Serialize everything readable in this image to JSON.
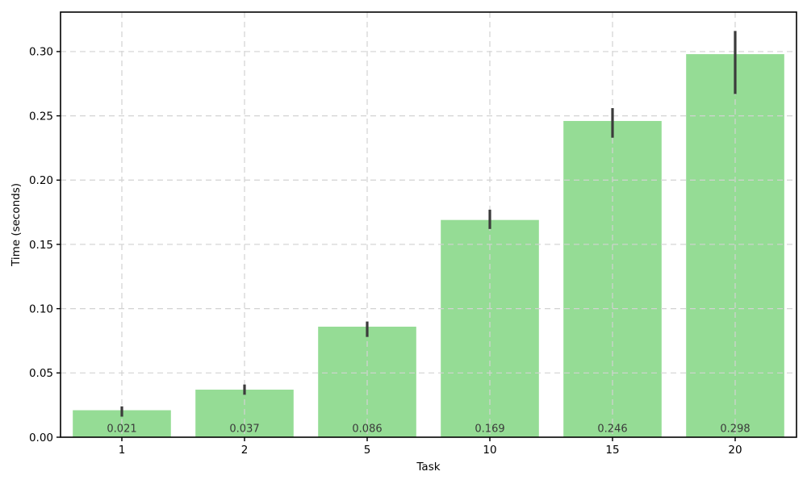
{
  "chart_data": {
    "type": "bar",
    "title": "",
    "xlabel": "Task",
    "ylabel": "Time (seconds)",
    "categories": [
      "1",
      "2",
      "5",
      "10",
      "15",
      "20"
    ],
    "values": [
      0.021,
      0.037,
      0.086,
      0.169,
      0.246,
      0.298
    ],
    "bar_labels": [
      "0.021",
      "0.037",
      "0.086",
      "0.169",
      "0.246",
      "0.298"
    ],
    "error_low": [
      0.016,
      0.033,
      0.078,
      0.162,
      0.233,
      0.267
    ],
    "error_high": [
      0.024,
      0.041,
      0.09,
      0.177,
      0.256,
      0.316
    ],
    "ytick_labels": [
      "0.00",
      "0.05",
      "0.10",
      "0.15",
      "0.20",
      "0.25",
      "0.30"
    ],
    "ytick_values": [
      0.0,
      0.05,
      0.1,
      0.15,
      0.2,
      0.25,
      0.3
    ],
    "ylim": [
      0,
      0.3307
    ],
    "grid": true,
    "grid_over_bars": true,
    "legend_position": "none",
    "bar_width_ratio": 0.8,
    "colors": {
      "bar_fill": "#95DC95",
      "error_bar": "#3B3B3B",
      "grid_line": "#D2D2D2",
      "axis_line": "#000000",
      "tick_label": "#000000",
      "bar_label": "#3A3A3A",
      "background": "#FFFFFF"
    }
  }
}
